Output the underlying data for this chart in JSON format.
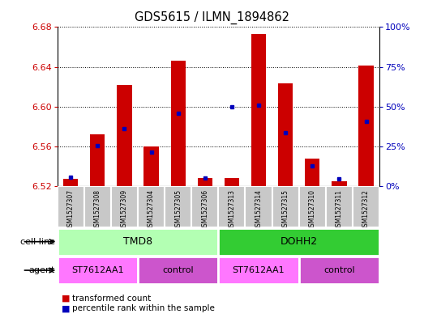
{
  "title": "GDS5615 / ILMN_1894862",
  "samples": [
    "GSM1527307",
    "GSM1527308",
    "GSM1527309",
    "GSM1527304",
    "GSM1527305",
    "GSM1527306",
    "GSM1527313",
    "GSM1527314",
    "GSM1527315",
    "GSM1527310",
    "GSM1527311",
    "GSM1527312"
  ],
  "red_values": [
    6.527,
    6.572,
    6.622,
    6.56,
    6.646,
    6.528,
    6.528,
    6.673,
    6.623,
    6.548,
    6.525,
    6.641
  ],
  "blue_values": [
    6.529,
    6.561,
    6.578,
    6.554,
    6.593,
    6.528,
    6.6,
    6.601,
    6.574,
    6.54,
    6.527,
    6.585
  ],
  "ylim_left": [
    6.52,
    6.68
  ],
  "ylim_right": [
    0,
    100
  ],
  "yticks_left": [
    6.52,
    6.56,
    6.6,
    6.64,
    6.68
  ],
  "yticks_right": [
    0,
    25,
    50,
    75,
    100
  ],
  "ytick_labels_right": [
    "0%",
    "25%",
    "50%",
    "75%",
    "100%"
  ],
  "baseline": 6.52,
  "bar_color": "#cc0000",
  "blue_color": "#0000bb",
  "cell_line_groups": [
    {
      "label": "TMD8",
      "start": 0,
      "end": 5,
      "color": "#b3ffb3"
    },
    {
      "label": "DOHH2",
      "start": 6,
      "end": 11,
      "color": "#33cc33"
    }
  ],
  "agent_groups": [
    {
      "label": "ST7612AA1",
      "start": 0,
      "end": 2,
      "color": "#ff77ff"
    },
    {
      "label": "control",
      "start": 3,
      "end": 5,
      "color": "#cc55cc"
    },
    {
      "label": "ST7612AA1",
      "start": 6,
      "end": 8,
      "color": "#ff77ff"
    },
    {
      "label": "control",
      "start": 9,
      "end": 11,
      "color": "#cc55cc"
    }
  ],
  "left_label_color": "#cc0000",
  "right_label_color": "#0000bb",
  "sample_bg": "#c8c8c8",
  "legend_red_text": "transformed count",
  "legend_blue_text": "percentile rank within the sample"
}
